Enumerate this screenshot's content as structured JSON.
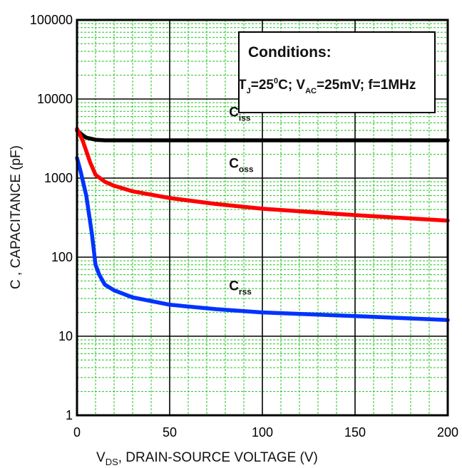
{
  "chart_data": {
    "type": "line",
    "x_scale": "linear",
    "y_scale": "log",
    "xlim": [
      0,
      200
    ],
    "ylim": [
      1,
      100000
    ],
    "xticks": [
      "0",
      "50",
      "100",
      "150",
      "200"
    ],
    "yticks": [
      "1",
      "10",
      "100",
      "1000",
      "10000",
      "100000"
    ],
    "xlabel": {
      "prefix": "V",
      "sub": "DS",
      "suffix": ", DRAIN-SOURCE VOLTAGE (V)"
    },
    "ylabel": "C , CAPACITANCE (pF)",
    "grid": true,
    "conditions": {
      "heading": "Conditions:",
      "line_parts": [
        {
          "text": "T"
        },
        {
          "sub": "J"
        },
        {
          "text": "=25"
        },
        {
          "sup": "0"
        },
        {
          "text": "C; V"
        },
        {
          "sub": "AC"
        },
        {
          "text": "=25mV; f=1MHz"
        }
      ]
    },
    "series": [
      {
        "name": "Ciss",
        "label_main": "C",
        "label_sub": "iss",
        "color": "#000000",
        "x": [
          0,
          3,
          5,
          10,
          15,
          20,
          50,
          100,
          150,
          200
        ],
        "y": [
          4000,
          3500,
          3250,
          3050,
          3000,
          3000,
          3000,
          3000,
          3000,
          3000
        ]
      },
      {
        "name": "Coss",
        "label_main": "C",
        "label_sub": "oss",
        "color": "#ff0000",
        "x": [
          0,
          3,
          5,
          7,
          10,
          15,
          20,
          30,
          50,
          75,
          100,
          150,
          200
        ],
        "y": [
          4200,
          3000,
          2200,
          1600,
          1100,
          900,
          800,
          680,
          560,
          470,
          410,
          340,
          290
        ]
      },
      {
        "name": "Crss",
        "label_main": "C",
        "label_sub": "rss",
        "color": "#0033ff",
        "x": [
          0,
          2,
          5,
          8,
          10,
          12,
          15,
          20,
          30,
          50,
          75,
          100,
          150,
          200
        ],
        "y": [
          1800,
          1200,
          600,
          200,
          80,
          60,
          45,
          38,
          31,
          25,
          22,
          20,
          18,
          16
        ]
      }
    ]
  }
}
